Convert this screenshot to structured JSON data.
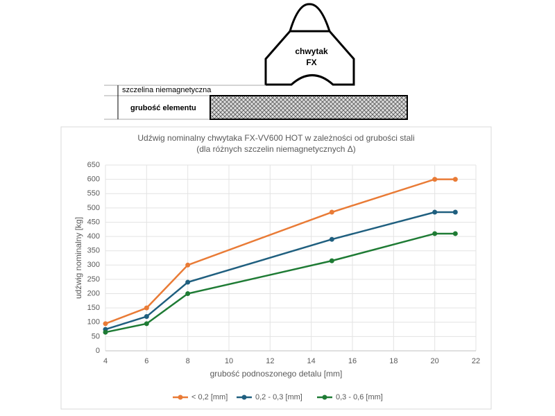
{
  "diagram": {
    "gripper_label_1": "chwytak",
    "gripper_label_2": "FX",
    "gap_label": "szczelina niemagnetyczna",
    "thickness_label": "grubość elementu"
  },
  "chart_data": {
    "type": "line",
    "title": "Udźwig nominalny chwytaka FX-VV600 HOT w zależności od grubości stali",
    "subtitle": "(dla różnych szczelin niemagnetycznych Δ)",
    "x_label": "grubość podnoszonego detalu [mm]",
    "y_label": "udźwig nominalny [kg]",
    "x": [
      4,
      6,
      8,
      15,
      20,
      21
    ],
    "series": [
      {
        "name": "< 0,2 [mm]",
        "color": "#e97b36",
        "values": [
          95,
          150,
          300,
          485,
          600,
          600
        ]
      },
      {
        "name": "0,2 - 0,3 [mm]",
        "color": "#1f5f7f",
        "values": [
          75,
          120,
          240,
          390,
          485,
          485
        ]
      },
      {
        "name": "0,3 - 0,6 [mm]",
        "color": "#1e7b34",
        "values": [
          65,
          95,
          200,
          315,
          410,
          410
        ]
      }
    ],
    "xlim": [
      4,
      22
    ],
    "xticks": [
      4,
      6,
      8,
      10,
      12,
      14,
      16,
      18,
      20,
      22
    ],
    "ylim": [
      0,
      650
    ],
    "yticks": [
      0,
      50,
      100,
      150,
      200,
      250,
      300,
      350,
      400,
      450,
      500,
      550,
      600,
      650
    ],
    "grid": true,
    "legend": "bottom"
  }
}
